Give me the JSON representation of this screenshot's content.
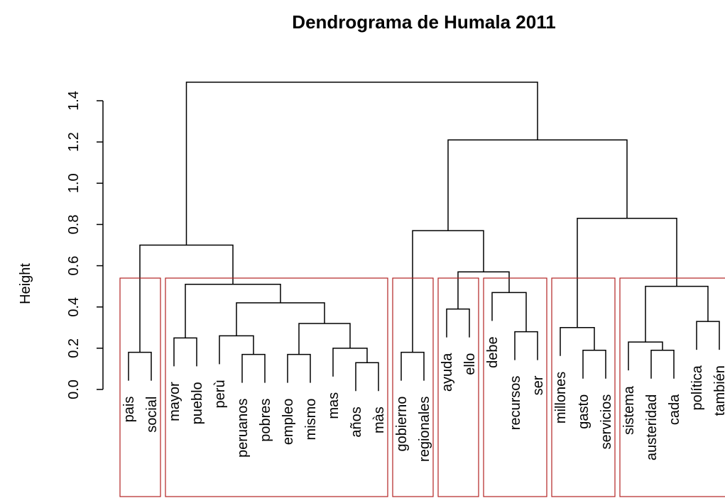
{
  "chart_data": {
    "type": "dendrogram",
    "title": "Dendrograma de Humala 2011",
    "y_label": "Height",
    "ylim": [
      0,
      1.4
    ],
    "yticks": [
      {
        "value": 0,
        "label": "0.0"
      },
      0.2,
      0.4,
      0.6,
      0.8,
      {
        "value": 1,
        "label": "1.0"
      },
      1.2,
      1.4
    ],
    "cut_height": 0.54,
    "cluster_color": "#b22222",
    "color": "#000000",
    "tree": {
      "height": 1.49,
      "children": [
        {
          "height": 0.7,
          "children": [
            {
              "height": 0.18,
              "children": [
                "pais",
                "social"
              ]
            },
            {
              "height": 0.51,
              "children": [
                {
                  "height": 0.25,
                  "children": [
                    "mayor",
                    "pueblo"
                  ]
                },
                {
                  "height": 0.42,
                  "children": [
                    {
                      "height": 0.26,
                      "children": [
                        "perù",
                        {
                          "height": 0.17,
                          "children": [
                            "peruanos",
                            "pobres"
                          ]
                        }
                      ]
                    },
                    {
                      "height": 0.32,
                      "children": [
                        {
                          "height": 0.17,
                          "children": [
                            "empleo",
                            "mismo"
                          ]
                        },
                        {
                          "height": 0.2,
                          "children": [
                            "mas",
                            {
                              "height": 0.13,
                              "children": [
                                "años",
                                "màs"
                              ]
                            }
                          ]
                        }
                      ]
                    }
                  ]
                }
              ]
            }
          ]
        },
        {
          "height": 1.21,
          "children": [
            {
              "height": 0.77,
              "children": [
                {
                  "height": 0.18,
                  "children": [
                    "gobierno",
                    "regionales"
                  ]
                },
                {
                  "height": 0.57,
                  "children": [
                    {
                      "height": 0.39,
                      "children": [
                        "ayuda",
                        "ello"
                      ]
                    },
                    {
                      "height": 0.47,
                      "children": [
                        "debe",
                        {
                          "height": 0.28,
                          "children": [
                            "recursos",
                            "ser"
                          ]
                        }
                      ]
                    }
                  ]
                }
              ]
            },
            {
              "height": 0.83,
              "children": [
                {
                  "height": 0.3,
                  "children": [
                    "millones",
                    {
                      "height": 0.19,
                      "children": [
                        "gasto",
                        "servicios"
                      ]
                    }
                  ]
                },
                {
                  "height": 0.5,
                  "children": [
                    {
                      "height": 0.23,
                      "children": [
                        "sistema",
                        {
                          "height": 0.19,
                          "children": [
                            "austeridad",
                            "cada"
                          ]
                        }
                      ]
                    },
                    {
                      "height": 0.33,
                      "children": [
                        "política",
                        "también"
                      ]
                    }
                  ]
                }
              ]
            }
          ]
        }
      ]
    }
  }
}
